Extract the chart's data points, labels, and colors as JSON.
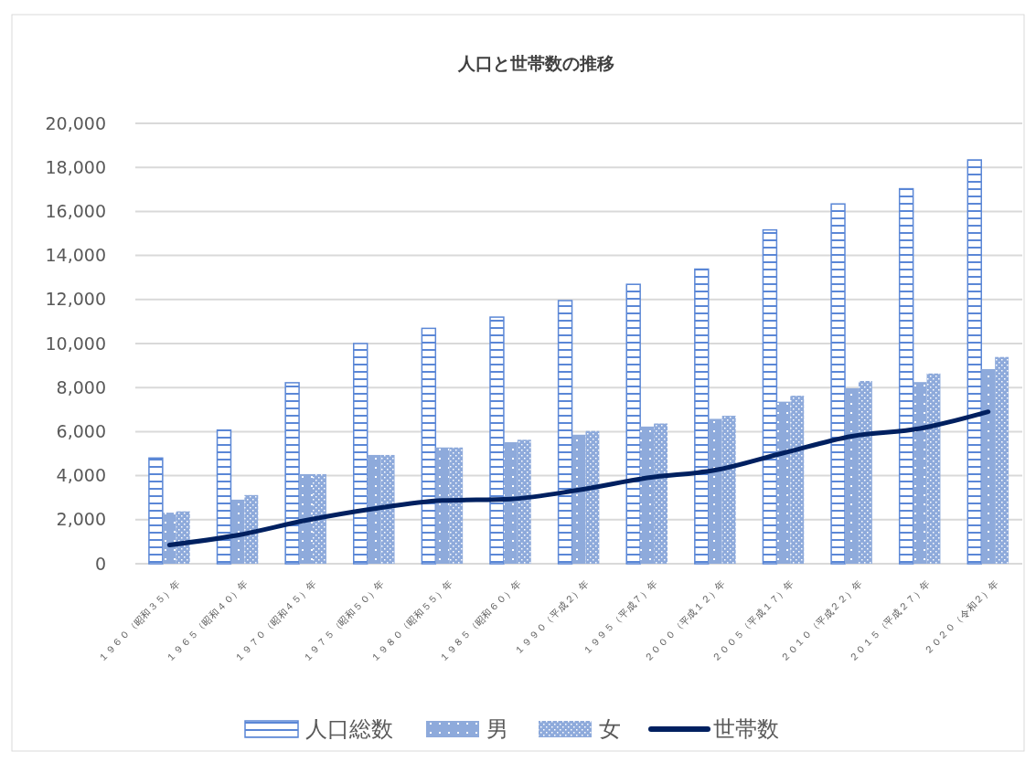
{
  "chart_data": {
    "type": "bar",
    "title": "人口と世帯数の推移",
    "categories": [
      "１９６０（昭和３５）年",
      "１９６５（昭和４０）年",
      "１９７０（昭和４５）年",
      "１９７５（昭和５０）年",
      "１９８０（昭和５５）年",
      "１９８５（昭和６０）年",
      "１９９０（平成２）年",
      "１９９５（平成７）年",
      "２０００（平成１２）年",
      "２００５（平成１７）年",
      "２０１０（平成２２）年",
      "２０１５（平成２７）年",
      "２０２０（令和２）年"
    ],
    "series": [
      {
        "name": "人口総数",
        "color": "#5b87d6",
        "values": [
          4800,
          6070,
          8220,
          10000,
          10690,
          11200,
          11950,
          12690,
          13380,
          15160,
          16340,
          17030,
          18340
        ]
      },
      {
        "name": "男",
        "color": "#8eaadb",
        "values": [
          2320,
          2910,
          4070,
          4940,
          5280,
          5520,
          5860,
          6230,
          6580,
          7360,
          7970,
          8250,
          8840
        ]
      },
      {
        "name": "女",
        "color": "#8eaadb",
        "values": [
          2380,
          3120,
          4070,
          4940,
          5280,
          5630,
          6030,
          6370,
          6720,
          7630,
          8300,
          8640,
          9390
        ]
      },
      {
        "name": "世帯数",
        "type": "line",
        "color": "#002060",
        "values": [
          850,
          1300,
          1970,
          2500,
          2870,
          2940,
          3350,
          3900,
          4250,
          5030,
          5790,
          6140,
          6900
        ]
      }
    ],
    "ylim": [
      0,
      20000
    ],
    "yticks": [
      0,
      {
        "value": 2000,
        "label": "2,000"
      },
      {
        "value": 4000,
        "label": "4,000"
      },
      {
        "value": 6000,
        "label": "6,000"
      },
      {
        "value": 8000,
        "label": "8,000"
      },
      {
        "value": 10000,
        "label": "10,000"
      },
      {
        "value": 12000,
        "label": "12,000"
      },
      {
        "value": 14000,
        "label": "14,000"
      },
      {
        "value": 16000,
        "label": "16,000"
      },
      {
        "value": 18000,
        "label": "18,000"
      },
      {
        "value": 20000,
        "label": "20,000"
      }
    ],
    "grid": "y",
    "legend": "bottom",
    "marker": "none",
    "line_style": "solid"
  }
}
